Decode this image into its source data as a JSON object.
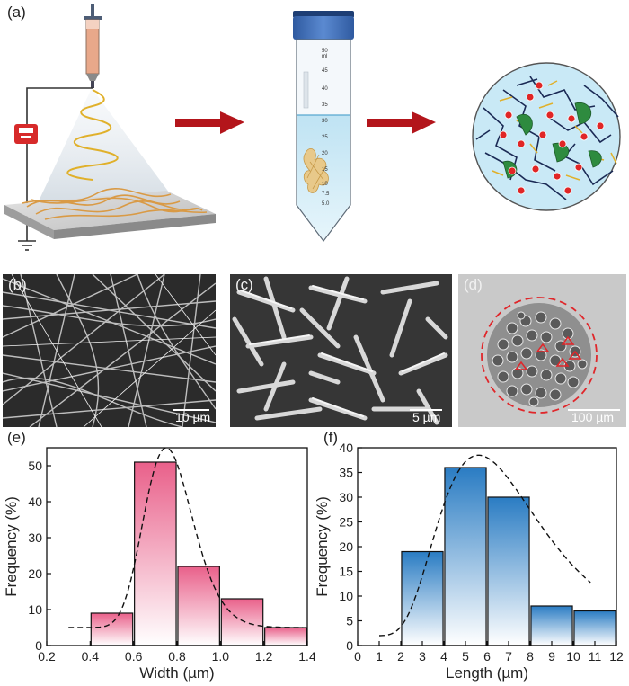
{
  "panels": {
    "a": {
      "label": "(a)",
      "tube_marks": [
        "50",
        "ml",
        "45",
        "40",
        "35",
        "30",
        "25",
        "20",
        "15",
        "10",
        "7.5",
        "5.0"
      ]
    },
    "b": {
      "label": "(b)",
      "scale": "10 µm"
    },
    "c": {
      "label": "(c)",
      "scale": "5 µm"
    },
    "d": {
      "label": "(d)",
      "scale": "100 µm"
    },
    "e": {
      "label": "(e)"
    },
    "f": {
      "label": "(f)"
    }
  },
  "colors": {
    "arrow": "#b3151b",
    "fiber": "#d99a45",
    "width_bar": "#e9608a",
    "length_bar": "#2a7cc3",
    "cap": "#3e6fb8"
  },
  "chart_data": [
    {
      "type": "bar",
      "xlabel": "Width (µm)",
      "ylabel": "Frequency (%)",
      "x": [
        0.5,
        0.7,
        0.9,
        1.1,
        1.3
      ],
      "values": [
        9,
        51,
        22,
        13,
        5
      ],
      "bar_width": 0.2,
      "xlim": [
        0.2,
        1.4
      ],
      "ylim": [
        0,
        55
      ],
      "xticks": [
        "0.2",
        "0.4",
        "0.6",
        "0.8",
        "1.0",
        "1.2",
        "1.4"
      ],
      "yticks": [
        "0",
        "10",
        "20",
        "30",
        "40",
        "50"
      ],
      "fit_curve": "dashed",
      "fit_peak": [
        0.75,
        55
      ]
    },
    {
      "type": "bar",
      "xlabel": "Length (µm)",
      "ylabel": "Frequency (%)",
      "x": [
        3,
        5,
        7,
        9,
        11
      ],
      "values": [
        19,
        36,
        30,
        8,
        7
      ],
      "bar_width": 2,
      "xlim": [
        0,
        12
      ],
      "ylim": [
        0,
        40
      ],
      "xticks": [
        "0",
        "1",
        "2",
        "3",
        "4",
        "5",
        "6",
        "7",
        "8",
        "9",
        "10",
        "11",
        "12"
      ],
      "yticks": [
        "0",
        "5",
        "10",
        "15",
        "20",
        "25",
        "30",
        "35",
        "40"
      ],
      "fit_curve": "dashed",
      "fit_peak": [
        5.6,
        38.5
      ]
    }
  ]
}
